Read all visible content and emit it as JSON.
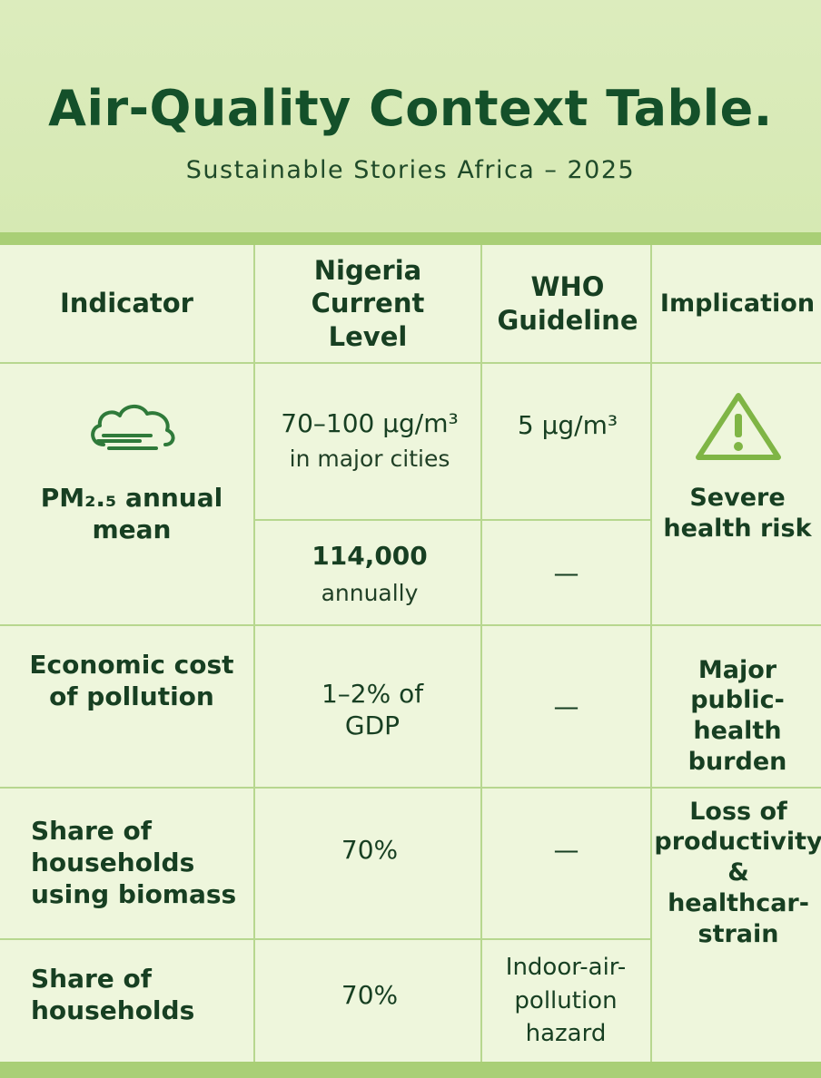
{
  "header": {
    "title": "Air-Quality Context Table.",
    "subtitle": "Sustainable Stories Africa – 2025"
  },
  "columns": [
    "Indicator",
    "Nigeria Current Level",
    "WHO Guideline",
    "Implication"
  ],
  "rows": [
    {
      "indicator": "PM₂.₅ annual mean",
      "nigeria_value": "70–100 µg/m³",
      "nigeria_note": "in major cities",
      "who": "5 µg/m³",
      "icon": "cloud-wind-icon"
    },
    {
      "nigeria_value": "114,000",
      "nigeria_note": "annually",
      "who": "—"
    },
    {
      "indicator": "Economic cost of pollution",
      "nigeria_value": "1–2% of GDP",
      "who": "—"
    },
    {
      "indicator": "Share of households using biomass",
      "nigeria_value": "70%",
      "who": "—"
    },
    {
      "indicator": "Share of households",
      "nigeria_value": "70%",
      "who": "Indoor-air-pollution hazard"
    }
  ],
  "implications": [
    {
      "text": "Severe health risk",
      "icon": "warning-triangle-icon"
    },
    {
      "text": "Major public-health burden"
    },
    {
      "text": "Loss of productivity & healthcar- strain"
    }
  ],
  "colors": {
    "header_bg": "#d6e9b3",
    "band": "#a9cf76",
    "table_bg": "#eef6dc",
    "grid": "#b7d78f",
    "text": "#173f22",
    "icon_green": "#7fb545"
  }
}
